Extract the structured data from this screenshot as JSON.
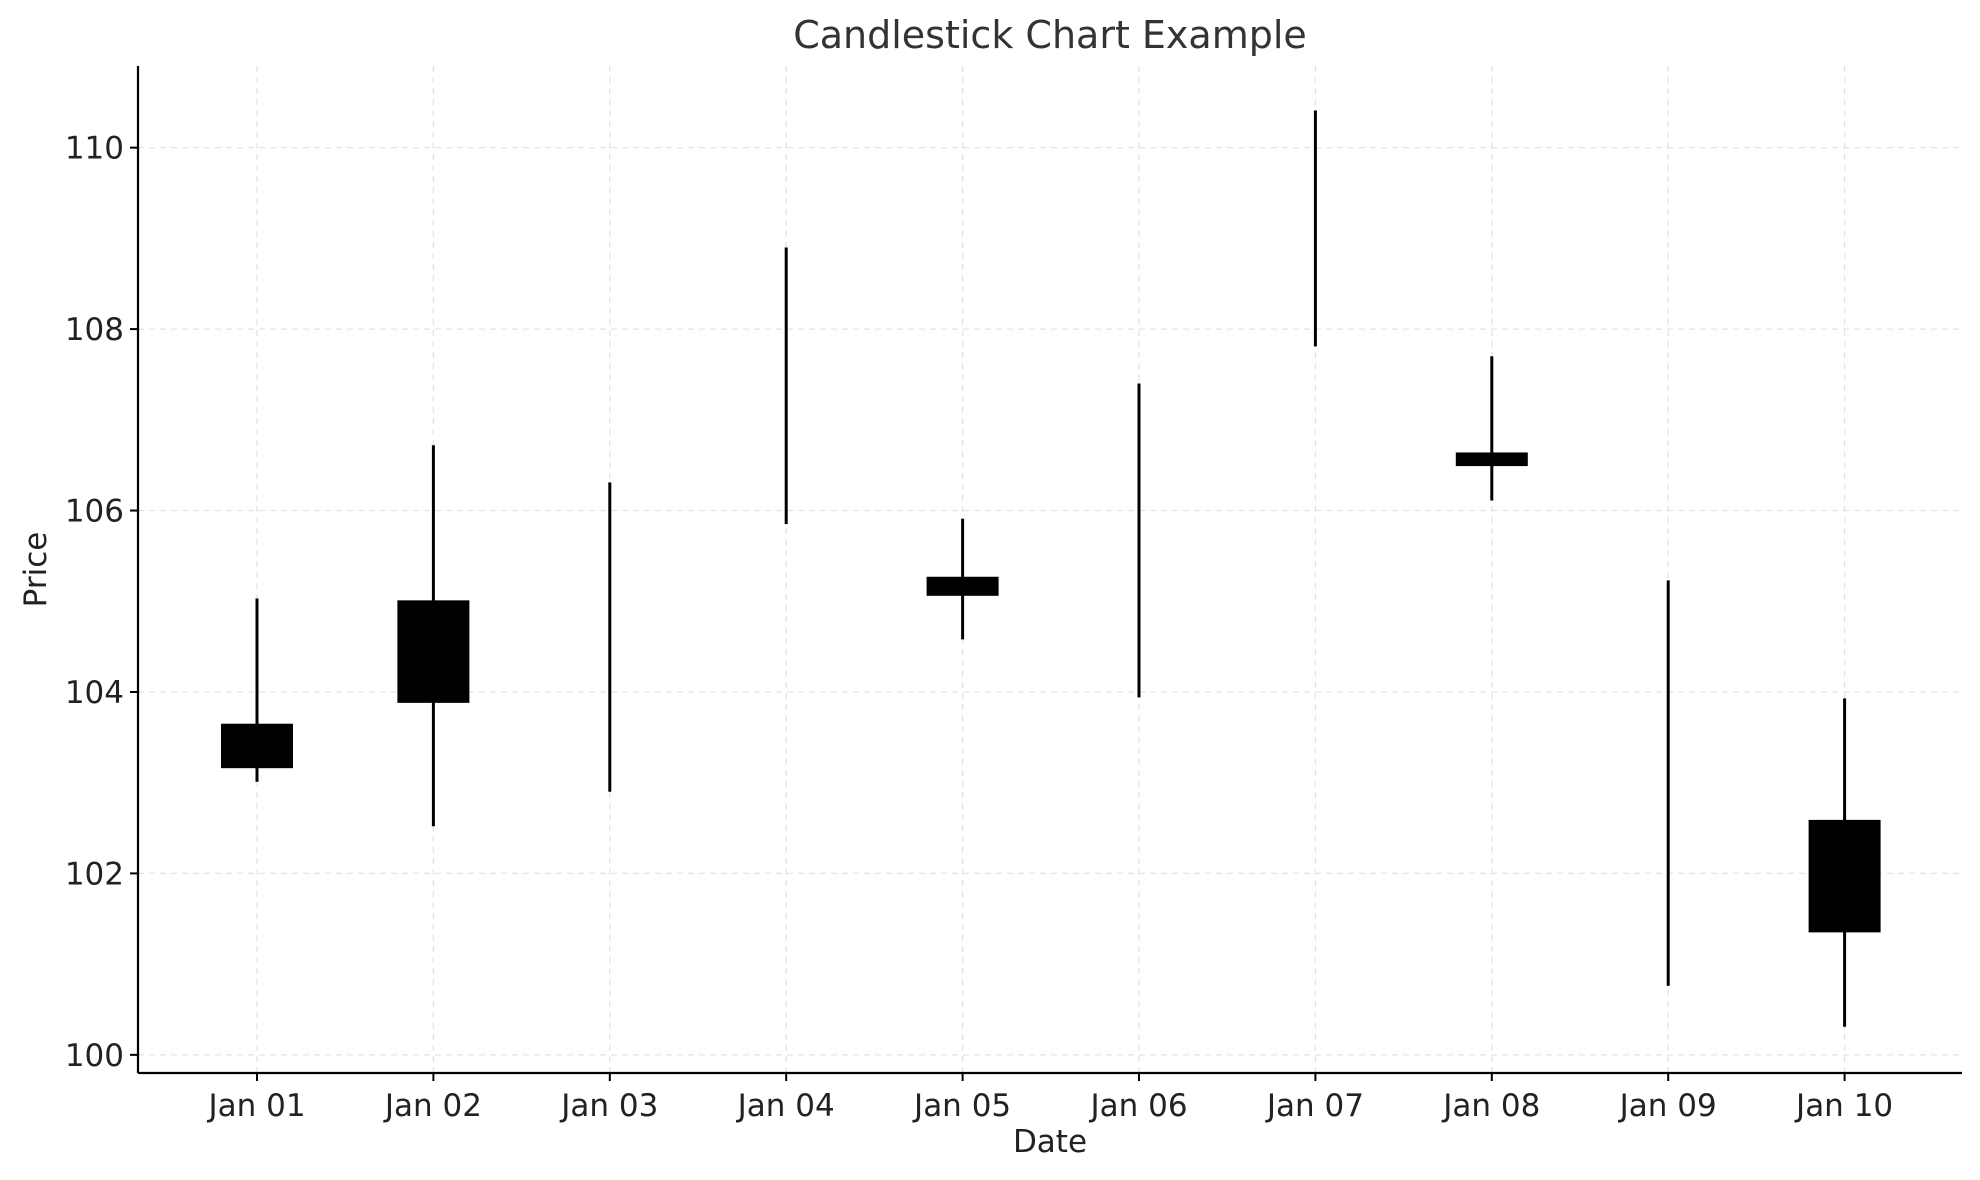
{
  "chart_data": {
    "type": "candlestick",
    "title": "Candlestick Chart Example",
    "xlabel": "Date",
    "ylabel": "Price",
    "ylim": [
      99.8,
      110.9
    ],
    "yticks": [
      100,
      102,
      104,
      106,
      108,
      110
    ],
    "grid": true,
    "colors": {
      "candle": "#000000",
      "grid": "#e3e3e3",
      "axis": "#000000"
    },
    "categories": [
      "Jan 01",
      "Jan 02",
      "Jan 03",
      "Jan 04",
      "Jan 05",
      "Jan 06",
      "Jan 07",
      "Jan 08",
      "Jan 09",
      "Jan 10"
    ],
    "ohlc": [
      {
        "open": 103.65,
        "high": 105.03,
        "low": 103.01,
        "close": 103.16
      },
      {
        "open": 105.01,
        "high": 106.72,
        "low": 102.52,
        "close": 103.88
      },
      {
        "open": 104.5,
        "high": 106.31,
        "low": 102.9,
        "close": 104.5
      },
      {
        "open": 107.5,
        "high": 108.9,
        "low": 105.85,
        "close": 107.5
      },
      {
        "open": 105.06,
        "high": 105.91,
        "low": 104.58,
        "close": 105.27
      },
      {
        "open": 105.7,
        "high": 107.4,
        "low": 103.94,
        "close": 105.7
      },
      {
        "open": 109.0,
        "high": 110.41,
        "low": 107.81,
        "close": 109.0
      },
      {
        "open": 106.49,
        "high": 107.7,
        "low": 106.11,
        "close": 106.64
      },
      {
        "open": 103.0,
        "high": 105.23,
        "low": 100.76,
        "close": 103.0
      },
      {
        "open": 102.59,
        "high": 103.93,
        "low": 100.31,
        "close": 101.35
      }
    ]
  }
}
